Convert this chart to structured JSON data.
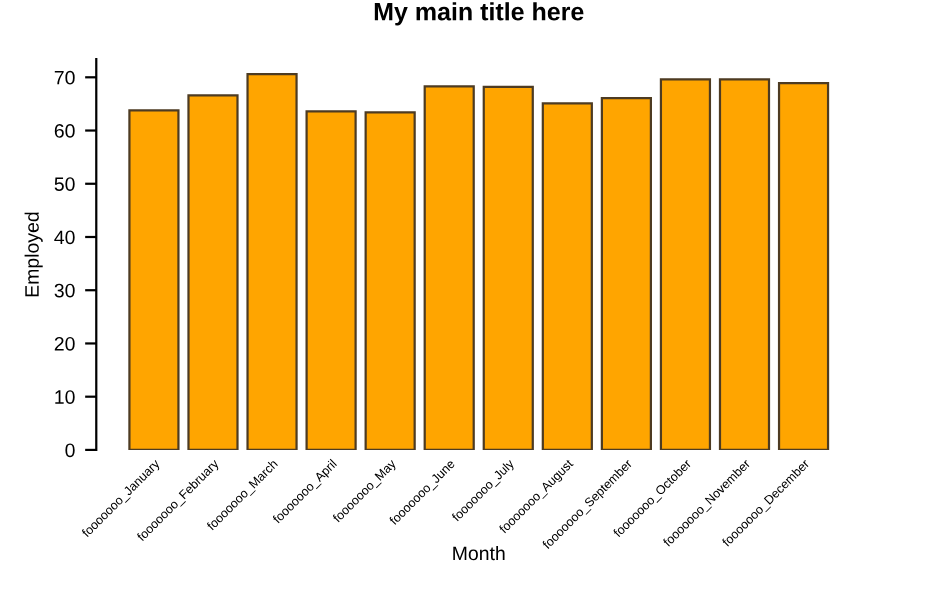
{
  "chart_data": {
    "type": "bar",
    "title": "My main title here",
    "xlabel": "Month",
    "ylabel": "Employed",
    "categories": [
      "fooooooo_January",
      "fooooooo_February",
      "fooooooo_March",
      "fooooooo_April",
      "fooooooo_May",
      "fooooooo_June",
      "fooooooo_July",
      "fooooooo_August",
      "fooooooo_September",
      "fooooooo_October",
      "fooooooo_November",
      "fooooooo_December"
    ],
    "values": [
      63.8,
      66.6,
      70.6,
      63.6,
      63.4,
      68.3,
      68.2,
      65.1,
      66.1,
      69.6,
      69.6,
      68.9
    ],
    "color": "#ffa500",
    "ylim": [
      0,
      73.4
    ],
    "yticks": [
      0,
      10,
      20,
      30,
      40,
      50,
      60,
      70
    ],
    "grid": false
  }
}
